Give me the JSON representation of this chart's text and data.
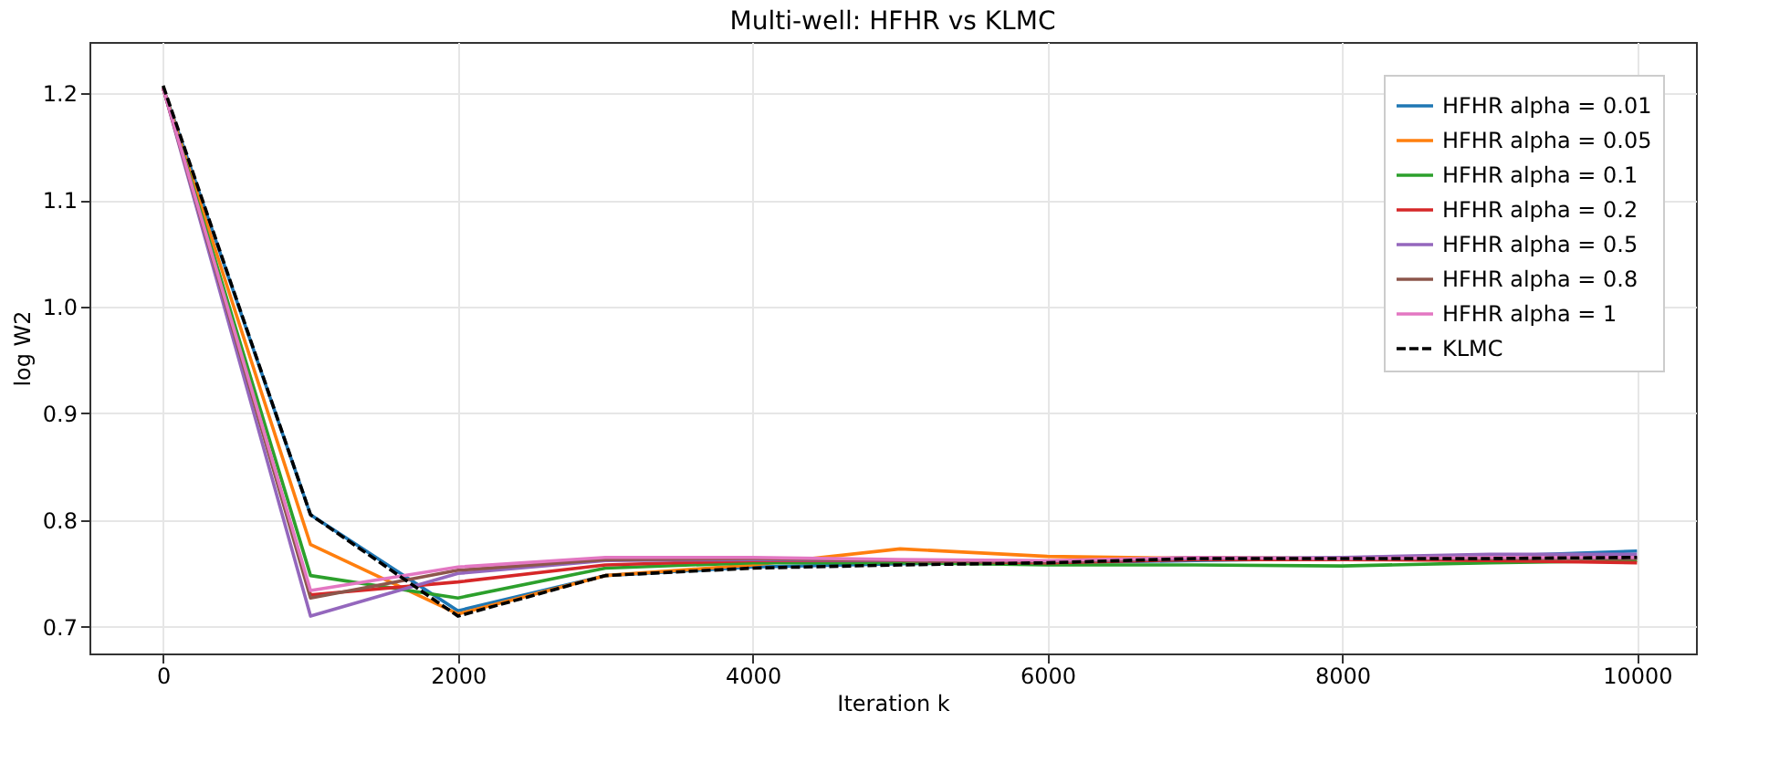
{
  "chart_data": {
    "type": "line",
    "title": "Multi-well: HFHR vs KLMC",
    "xlabel": "Iteration k",
    "ylabel": "log W2",
    "x": [
      0,
      1000,
      2000,
      3000,
      4000,
      5000,
      6000,
      7000,
      8000,
      9000,
      10000
    ],
    "xlim": [
      -500,
      10400
    ],
    "xticks": [
      0,
      2000,
      4000,
      6000,
      8000,
      10000
    ],
    "ylim": [
      0.675,
      1.248
    ],
    "yticks": [
      0.7,
      0.8,
      0.9,
      {
        "value": 1.0,
        "label": "1.0"
      },
      1.1,
      1.2
    ],
    "grid": true,
    "legend": "top right",
    "series": [
      {
        "name": "HFHR alpha = 0.01",
        "color": "#1f77b4",
        "values": [
          1.205,
          0.805,
          0.715,
          0.748,
          0.756,
          0.759,
          0.76,
          0.762,
          0.764,
          0.766,
          0.771
        ]
      },
      {
        "name": "HFHR alpha = 0.05",
        "color": "#ff7f0e",
        "values": [
          1.205,
          0.777,
          0.712,
          0.748,
          0.758,
          0.773,
          0.766,
          0.764,
          0.764,
          null,
          null
        ]
      },
      {
        "name": "HFHR alpha = 0.1",
        "color": "#2ca02c",
        "values": [
          1.205,
          0.748,
          0.727,
          0.755,
          0.76,
          0.76,
          0.758,
          0.758,
          0.757,
          0.76,
          0.762
        ]
      },
      {
        "name": "HFHR alpha = 0.2",
        "color": "#d62728",
        "values": [
          1.205,
          0.73,
          0.742,
          0.758,
          0.762,
          0.762,
          0.76,
          0.763,
          0.763,
          0.762,
          0.76
        ]
      },
      {
        "name": "HFHR alpha = 0.5",
        "color": "#9467bd",
        "values": [
          1.205,
          0.71,
          0.75,
          0.762,
          0.763,
          0.762,
          0.761,
          0.764,
          0.765,
          0.768,
          0.768
        ]
      },
      {
        "name": "HFHR alpha = 0.8",
        "color": "#8c564b",
        "values": [
          1.205,
          0.727,
          0.753,
          0.763,
          0.764,
          0.762,
          0.761,
          0.765,
          0.764,
          0.764,
          0.764
        ]
      },
      {
        "name": "HFHR alpha = 1",
        "color": "#e377c2",
        "values": [
          1.205,
          0.734,
          0.756,
          0.765,
          0.765,
          0.763,
          0.762,
          0.765,
          0.764,
          0.765,
          0.765
        ]
      },
      {
        "name": "KLMC",
        "color": "#000000",
        "line_style": "dashed",
        "values": [
          1.207,
          0.805,
          0.71,
          0.748,
          0.755,
          0.758,
          0.76,
          0.764,
          0.764,
          0.764,
          0.765
        ]
      }
    ]
  }
}
